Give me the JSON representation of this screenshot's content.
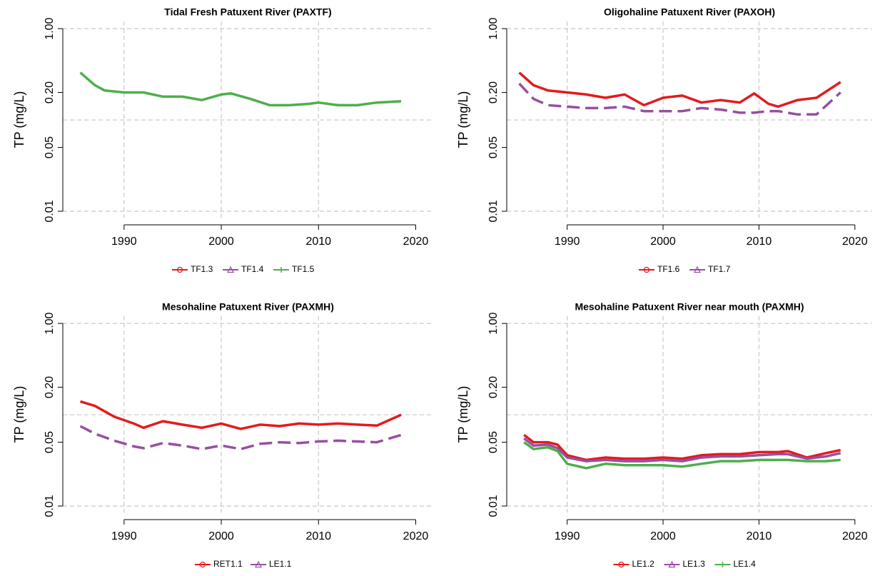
{
  "chart_data": [
    {
      "type": "line",
      "title": "Tidal Fresh Patuxent River (PAXTF)",
      "y_label": "TP (mg/L)",
      "log_y": true,
      "xlim": [
        1983.7,
        2021.8
      ],
      "xticks": [
        1990,
        2000,
        2010,
        2020
      ],
      "ylim": [
        0.0085,
        1.2
      ],
      "yticks": [
        0.01,
        0.05,
        {
          "value": 0.2,
          "label": "0.20"
        },
        {
          "value": 1,
          "label": "1.00"
        }
      ],
      "ygrid": [
        0.01,
        0.1,
        1
      ],
      "xgrid": [
        1990,
        2000,
        2010
      ],
      "x": [
        1985.5,
        1987,
        1988,
        1990,
        1992,
        1994,
        1996,
        1998,
        2000,
        2001,
        2003,
        2005,
        2007,
        2009,
        2010,
        2012,
        2014,
        2016,
        2018.5
      ],
      "series": [
        {
          "name": "TF1.3",
          "color": "#e41a1c",
          "marker": "circle",
          "dash": false,
          "values": [
            null,
            null,
            null,
            null,
            null,
            null,
            null,
            null,
            null,
            null,
            null,
            null,
            null,
            null,
            null,
            null,
            null,
            null,
            null
          ]
        },
        {
          "name": "TF1.4",
          "color": "#984ea3",
          "marker": "triangle",
          "dash": false,
          "values": [
            null,
            null,
            null,
            null,
            null,
            null,
            null,
            null,
            null,
            null,
            null,
            null,
            null,
            null,
            null,
            null,
            null,
            null,
            null
          ]
        },
        {
          "name": "TF1.5",
          "color": "#4daf4a",
          "marker": "plus",
          "dash": false,
          "values": [
            0.33,
            0.24,
            0.21,
            0.2,
            0.2,
            0.18,
            0.18,
            0.165,
            0.19,
            0.195,
            0.17,
            0.145,
            0.145,
            0.15,
            0.155,
            0.145,
            0.145,
            0.155,
            0.16
          ]
        }
      ]
    },
    {
      "type": "line",
      "title": "Oligohaline Patuxent River (PAXOH)",
      "y_label": "TP (mg/L)",
      "log_y": true,
      "xlim": [
        1983.7,
        2021.8
      ],
      "xticks": [
        1990,
        2000,
        2010,
        2020
      ],
      "ylim": [
        0.0085,
        1.2
      ],
      "yticks": [
        0.01,
        0.05,
        {
          "value": 0.2,
          "label": "0.20"
        },
        {
          "value": 1,
          "label": "1.00"
        }
      ],
      "ygrid": [
        0.01,
        0.1,
        1
      ],
      "xgrid": [
        1990,
        2000,
        2010
      ],
      "x": [
        1985,
        1986.5,
        1988,
        1990,
        1992,
        1994,
        1996,
        1998,
        2000,
        2002,
        2004,
        2006,
        2008,
        2009.5,
        2011,
        2012,
        2014,
        2016,
        2018.5
      ],
      "series": [
        {
          "name": "TF1.6",
          "color": "#e41a1c",
          "marker": "circle",
          "dash": false,
          "values": [
            0.33,
            0.24,
            0.21,
            0.2,
            0.19,
            0.175,
            0.19,
            0.145,
            0.175,
            0.185,
            0.155,
            0.165,
            0.155,
            0.195,
            0.15,
            0.14,
            0.165,
            0.175,
            0.26
          ]
        },
        {
          "name": "TF1.7",
          "color": "#984ea3",
          "marker": "triangle",
          "dash": true,
          "values": [
            0.25,
            0.17,
            0.145,
            0.14,
            0.135,
            0.135,
            0.14,
            0.125,
            0.125,
            0.125,
            0.135,
            0.13,
            0.12,
            0.12,
            0.125,
            0.125,
            0.115,
            0.115,
            0.2
          ]
        }
      ]
    },
    {
      "type": "line",
      "title": "Mesohaline Patuxent River (PAXMH)",
      "y_label": "TP (mg/L)",
      "log_y": true,
      "xlim": [
        1983.7,
        2021.8
      ],
      "xticks": [
        1990,
        2000,
        2010,
        2020
      ],
      "ylim": [
        0.0085,
        1.2
      ],
      "yticks": [
        0.01,
        0.05,
        {
          "value": 0.2,
          "label": "0.20"
        },
        {
          "value": 1,
          "label": "1.00"
        }
      ],
      "ygrid": [
        0.01,
        0.1,
        1
      ],
      "xgrid": [
        1990,
        2000,
        2010
      ],
      "x": [
        1985.5,
        1987,
        1989,
        1991,
        1992,
        1994,
        1996,
        1998,
        2000,
        2002,
        2004,
        2006,
        2008,
        2010,
        2012,
        2014,
        2016,
        2018.5
      ],
      "series": [
        {
          "name": "RET1.1",
          "color": "#e41a1c",
          "marker": "circle",
          "dash": false,
          "values": [
            0.14,
            0.125,
            0.095,
            0.08,
            0.072,
            0.085,
            0.078,
            0.072,
            0.08,
            0.07,
            0.078,
            0.075,
            0.08,
            0.078,
            0.08,
            0.078,
            0.076,
            0.1
          ]
        },
        {
          "name": "LE1.1",
          "color": "#984ea3",
          "marker": "triangle",
          "dash": true,
          "values": [
            0.075,
            0.062,
            0.052,
            0.045,
            0.043,
            0.049,
            0.046,
            0.042,
            0.046,
            0.042,
            0.048,
            0.05,
            0.049,
            0.051,
            0.052,
            0.051,
            0.05,
            0.06
          ]
        }
      ]
    },
    {
      "type": "line",
      "title": "Mesohaline Patuxent River near mouth (PAXMH)",
      "y_label": "TP (mg/L)",
      "log_y": true,
      "xlim": [
        1983.7,
        2021.8
      ],
      "xticks": [
        1990,
        2000,
        2010,
        2020
      ],
      "ylim": [
        0.0085,
        1.2
      ],
      "yticks": [
        0.01,
        0.05,
        {
          "value": 0.2,
          "label": "0.20"
        },
        {
          "value": 1,
          "label": "1.00"
        }
      ],
      "ygrid": [
        0.01,
        0.1,
        1
      ],
      "xgrid": [
        1990,
        2000,
        2010
      ],
      "x": [
        1985.5,
        1986.5,
        1988,
        1989,
        1990,
        1992,
        1994,
        1996,
        1998,
        2000,
        2002,
        2004,
        2006,
        2008,
        2010,
        2012,
        2013,
        2015,
        2017,
        2018.5
      ],
      "series": [
        {
          "name": "LE1.2",
          "color": "#e41a1c",
          "marker": "circle",
          "dash": false,
          "values": [
            0.06,
            0.05,
            0.05,
            0.047,
            0.036,
            0.032,
            0.034,
            0.033,
            0.033,
            0.034,
            0.033,
            0.036,
            0.037,
            0.037,
            0.039,
            0.039,
            0.04,
            0.034,
            0.038,
            0.041
          ]
        },
        {
          "name": "LE1.3",
          "color": "#984ea3",
          "marker": "triangle",
          "dash": false,
          "values": [
            0.055,
            0.046,
            0.047,
            0.043,
            0.034,
            0.031,
            0.032,
            0.031,
            0.031,
            0.032,
            0.031,
            0.034,
            0.035,
            0.035,
            0.036,
            0.037,
            0.037,
            0.033,
            0.035,
            0.038
          ]
        },
        {
          "name": "LE1.4",
          "color": "#4daf4a",
          "marker": "plus",
          "dash": false,
          "values": [
            0.05,
            0.042,
            0.044,
            0.04,
            0.029,
            0.026,
            0.029,
            0.028,
            0.028,
            0.028,
            0.027,
            0.029,
            0.031,
            0.031,
            0.032,
            0.032,
            0.032,
            0.031,
            0.031,
            0.032
          ]
        }
      ]
    }
  ]
}
